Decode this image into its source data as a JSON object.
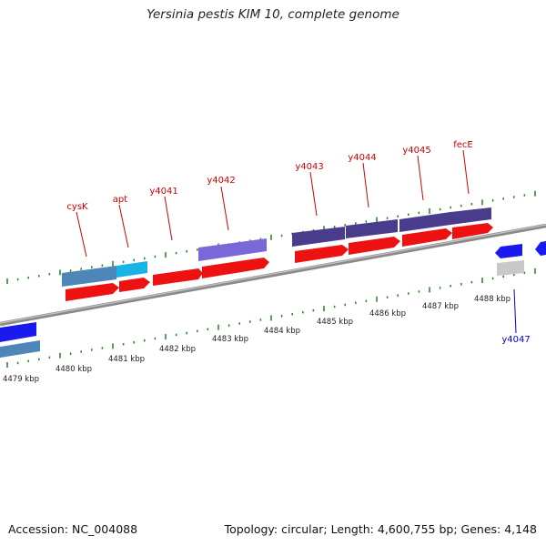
{
  "header": {
    "title": "Yersinia pestis KIM 10, complete genome"
  },
  "footer": {
    "accession": "Accession: NC_004088",
    "summary": "Topology: circular; Length: 4,600,755 bp; Genes: 4,148"
  },
  "colors": {
    "backbone": "#8a8a8a",
    "tick": "#2e8b2e",
    "cds_forward": "#ee1111",
    "cds_reverse": "#1a1aee",
    "label_forward": "#cc0000",
    "label_reverse": "#0000cc",
    "cog_steelblue": "#4f86b8",
    "cog_cyan": "#18b4e8",
    "cog_slate": "#7a68d8",
    "cog_darkslate": "#4a3c8c",
    "cog_gray": "#c8c8c8"
  },
  "map": {
    "kbp_labels": [
      "4479 kbp",
      "4480 kbp",
      "4481 kbp",
      "4482 kbp",
      "4483 kbp",
      "4484 kbp",
      "4485 kbp",
      "4486 kbp",
      "4487 kbp",
      "4488 kbp"
    ],
    "forward_gene_labels": [
      "cysK",
      "apt",
      "y4041",
      "y4042",
      "y4043",
      "y4044",
      "y4045",
      "fecE"
    ],
    "reverse_gene_labels": [
      "y4047"
    ]
  }
}
